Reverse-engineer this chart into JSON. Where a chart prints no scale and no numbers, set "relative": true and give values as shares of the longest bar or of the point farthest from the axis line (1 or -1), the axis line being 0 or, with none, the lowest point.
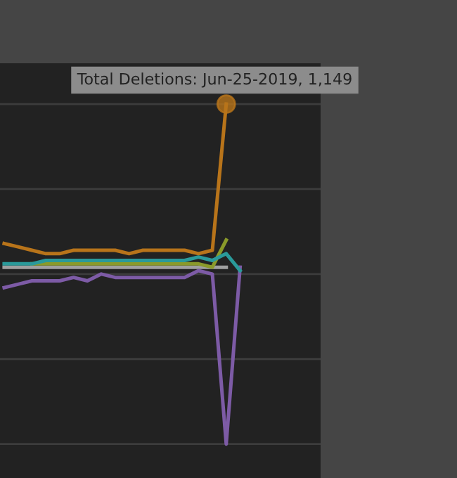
{
  "chart_data": {
    "type": "line",
    "relative": true,
    "grid": "y",
    "categories": [
      null,
      null,
      null,
      null,
      null,
      null,
      null,
      null,
      null,
      null,
      null,
      null,
      null,
      null,
      null,
      null,
      null,
      null
    ],
    "series": [
      {
        "color": "#a0a0a0",
        "values": [
          0.52,
          0.52,
          0.52,
          0.52,
          0.52,
          0.52,
          0.52,
          0.52,
          0.52,
          0.52,
          0.52,
          0.52,
          0.52,
          0.52,
          0.52,
          0.52,
          0.52,
          null
        ]
      },
      {
        "color": "#7d5ba6",
        "values": [
          0.46,
          0.47,
          0.48,
          0.48,
          0.48,
          0.49,
          0.48,
          0.5,
          0.49,
          0.49,
          0.49,
          0.49,
          0.49,
          0.49,
          0.51,
          0.5,
          0.0,
          0.52
        ]
      },
      {
        "color": "#8a9a2a",
        "values": [
          null,
          null,
          0.53,
          0.53,
          0.53,
          0.53,
          0.53,
          0.53,
          0.53,
          0.53,
          0.53,
          0.53,
          0.53,
          0.53,
          0.53,
          0.52,
          0.6,
          null
        ]
      },
      {
        "color": "#2a9a9a",
        "values": [
          0.53,
          0.53,
          0.53,
          0.54,
          0.54,
          0.54,
          0.54,
          0.54,
          0.54,
          0.54,
          0.54,
          0.54,
          0.54,
          0.54,
          0.55,
          0.54,
          0.56,
          0.51
        ]
      },
      {
        "color": "#b8741a",
        "values": [
          0.59,
          0.58,
          0.57,
          0.56,
          0.56,
          0.57,
          0.57,
          0.57,
          0.57,
          0.56,
          0.57,
          0.57,
          0.57,
          0.57,
          0.56,
          0.57,
          1.0,
          null
        ]
      }
    ],
    "annotations": [
      {
        "text": "Total Deletions: Jun-25-2019, 1,149",
        "y": 1.0
      }
    ]
  }
}
